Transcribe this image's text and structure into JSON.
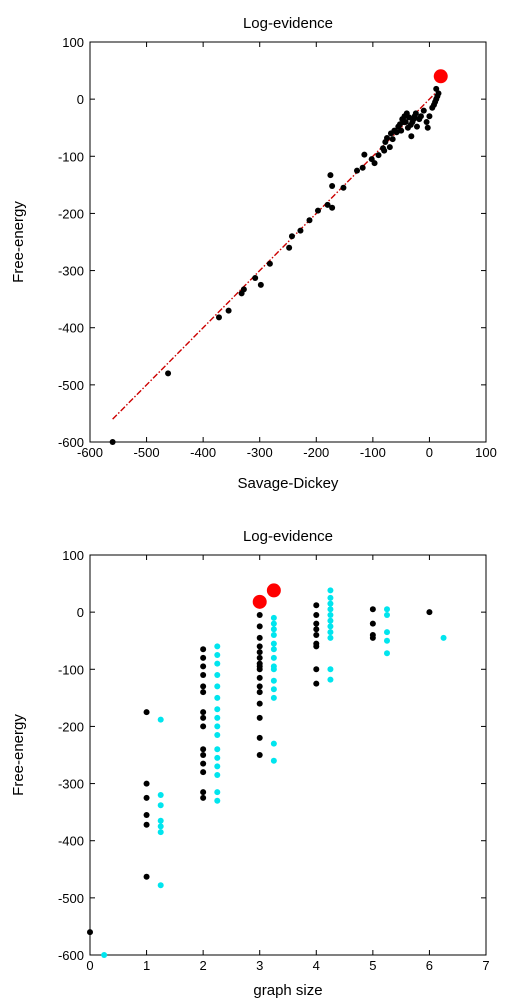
{
  "chart_data": [
    {
      "type": "scatter",
      "title": "Log-evidence",
      "xlabel": "Savage-Dickey",
      "ylabel": "Free-energy",
      "xlim": [
        -600,
        100
      ],
      "ylim": [
        -600,
        100
      ],
      "xticks": [
        -600,
        -500,
        -400,
        -300,
        -200,
        -100,
        0,
        100
      ],
      "yticks": [
        100,
        0,
        -100,
        -200,
        -300,
        -400,
        -500,
        -600
      ],
      "grid": false,
      "colors": {
        "points": "#000000",
        "highlight": "#ff0000",
        "fit_line": "#cc0000"
      },
      "fit_line": {
        "from": [
          -560,
          -560
        ],
        "to": [
          15,
          15
        ]
      },
      "series": [
        {
          "values": [
            [
              -560,
              -600
            ],
            [
              -462,
              -480
            ],
            [
              -372,
              -382
            ],
            [
              -355,
              -370
            ],
            [
              -332,
              -340
            ],
            [
              -328,
              -333
            ],
            [
              -308,
              -313
            ],
            [
              -298,
              -325
            ],
            [
              -282,
              -288
            ],
            [
              -248,
              -260
            ],
            [
              -243,
              -240
            ],
            [
              -228,
              -230
            ],
            [
              -212,
              -212
            ],
            [
              -197,
              -195
            ],
            [
              -180,
              -185
            ],
            [
              -172,
              -190
            ],
            [
              -175,
              -133
            ],
            [
              -172,
              -152
            ],
            [
              -152,
              -155
            ],
            [
              -128,
              -125
            ],
            [
              -118,
              -120
            ],
            [
              -115,
              -97
            ],
            [
              -102,
              -105
            ],
            [
              -97,
              -112
            ],
            [
              -90,
              -98
            ],
            [
              -82,
              -86
            ],
            [
              -80,
              -90
            ],
            [
              -78,
              -75
            ],
            [
              -75,
              -68
            ],
            [
              -70,
              -84
            ],
            [
              -68,
              -60
            ],
            [
              -65,
              -70
            ],
            [
              -62,
              -55
            ],
            [
              -58,
              -58
            ],
            [
              -55,
              -48
            ],
            [
              -52,
              -44
            ],
            [
              -50,
              -55
            ],
            [
              -48,
              -35
            ],
            [
              -46,
              -40
            ],
            [
              -44,
              -30
            ],
            [
              -42,
              -40
            ],
            [
              -40,
              -25
            ],
            [
              -38,
              -50
            ],
            [
              -36,
              -32
            ],
            [
              -33,
              -45
            ],
            [
              -32,
              -65
            ],
            [
              -30,
              -40
            ],
            [
              -28,
              -35
            ],
            [
              -26,
              -30
            ],
            [
              -24,
              -25
            ],
            [
              -22,
              -48
            ],
            [
              -18,
              -35
            ],
            [
              -15,
              -30
            ],
            [
              -10,
              -20
            ],
            [
              -5,
              -40
            ],
            [
              -3,
              -50
            ],
            [
              0,
              -30
            ],
            [
              5,
              -15
            ],
            [
              8,
              -10
            ],
            [
              10,
              -5
            ],
            [
              12,
              0
            ],
            [
              14,
              5
            ],
            [
              16,
              10
            ],
            [
              12,
              18
            ]
          ]
        }
      ],
      "highlight": [
        [
          20,
          40
        ]
      ]
    },
    {
      "type": "scatter",
      "title": "Log-evidence",
      "xlabel": "graph size",
      "ylabel": "Free-energy",
      "xlim": [
        0,
        7
      ],
      "ylim": [
        -600,
        100
      ],
      "xticks": [
        0,
        1,
        2,
        3,
        4,
        5,
        6,
        7
      ],
      "yticks": [
        100,
        0,
        -100,
        -200,
        -300,
        -400,
        -500,
        -600
      ],
      "grid": false,
      "colors": {
        "black": "#000000",
        "cyan": "#00e5ee",
        "highlight": "#ff0000"
      },
      "series": [
        {
          "color": "#000000",
          "values": [
            [
              0,
              -560
            ],
            [
              1,
              -175
            ],
            [
              1,
              -300
            ],
            [
              1,
              -325
            ],
            [
              1,
              -355
            ],
            [
              1,
              -372
            ],
            [
              1,
              -463
            ],
            [
              2,
              -65
            ],
            [
              2,
              -80
            ],
            [
              2,
              -95
            ],
            [
              2,
              -110
            ],
            [
              2,
              -130
            ],
            [
              2,
              -140
            ],
            [
              2,
              -175
            ],
            [
              2,
              -185
            ],
            [
              2,
              -200
            ],
            [
              2,
              -240
            ],
            [
              2,
              -250
            ],
            [
              2,
              -265
            ],
            [
              2,
              -280
            ],
            [
              2,
              -315
            ],
            [
              2,
              -325
            ],
            [
              3,
              -5
            ],
            [
              3,
              -25
            ],
            [
              3,
              -45
            ],
            [
              3,
              -60
            ],
            [
              3,
              -70
            ],
            [
              3,
              -80
            ],
            [
              3,
              -90
            ],
            [
              3,
              -95
            ],
            [
              3,
              -100
            ],
            [
              3,
              -115
            ],
            [
              3,
              -130
            ],
            [
              3,
              -140
            ],
            [
              3,
              -160
            ],
            [
              3,
              -185
            ],
            [
              3,
              -220
            ],
            [
              3,
              -250
            ],
            [
              4,
              12
            ],
            [
              4,
              -5
            ],
            [
              4,
              -20
            ],
            [
              4,
              -30
            ],
            [
              4,
              -40
            ],
            [
              4,
              -55
            ],
            [
              4,
              -60
            ],
            [
              4,
              -100
            ],
            [
              4,
              -125
            ],
            [
              5,
              5
            ],
            [
              5,
              -20
            ],
            [
              5,
              -40
            ],
            [
              5,
              -45
            ],
            [
              6,
              0
            ]
          ]
        },
        {
          "color": "#00e5ee",
          "values": [
            [
              0.25,
              -600
            ],
            [
              1.25,
              -188
            ],
            [
              1.25,
              -320
            ],
            [
              1.25,
              -338
            ],
            [
              1.25,
              -365
            ],
            [
              1.25,
              -375
            ],
            [
              1.25,
              -385
            ],
            [
              1.25,
              -478
            ],
            [
              2.25,
              -60
            ],
            [
              2.25,
              -75
            ],
            [
              2.25,
              -90
            ],
            [
              2.25,
              -110
            ],
            [
              2.25,
              -130
            ],
            [
              2.25,
              -150
            ],
            [
              2.25,
              -170
            ],
            [
              2.25,
              -185
            ],
            [
              2.25,
              -200
            ],
            [
              2.25,
              -215
            ],
            [
              2.25,
              -240
            ],
            [
              2.25,
              -255
            ],
            [
              2.25,
              -270
            ],
            [
              2.25,
              -285
            ],
            [
              2.25,
              -315
            ],
            [
              2.25,
              -330
            ],
            [
              3.25,
              -10
            ],
            [
              3.25,
              -20
            ],
            [
              3.25,
              -30
            ],
            [
              3.25,
              -40
            ],
            [
              3.25,
              -55
            ],
            [
              3.25,
              -65
            ],
            [
              3.25,
              -80
            ],
            [
              3.25,
              -95
            ],
            [
              3.25,
              -100
            ],
            [
              3.25,
              -120
            ],
            [
              3.25,
              -135
            ],
            [
              3.25,
              -150
            ],
            [
              3.25,
              -230
            ],
            [
              3.25,
              -260
            ],
            [
              4.25,
              38
            ],
            [
              4.25,
              25
            ],
            [
              4.25,
              15
            ],
            [
              4.25,
              5
            ],
            [
              4.25,
              -5
            ],
            [
              4.25,
              -15
            ],
            [
              4.25,
              -25
            ],
            [
              4.25,
              -35
            ],
            [
              4.25,
              -45
            ],
            [
              4.25,
              -100
            ],
            [
              4.25,
              -118
            ],
            [
              5.25,
              5
            ],
            [
              5.25,
              -5
            ],
            [
              5.25,
              -35
            ],
            [
              5.25,
              -50
            ],
            [
              5.25,
              -72
            ],
            [
              6.25,
              -45
            ]
          ]
        }
      ],
      "highlight": [
        [
          3,
          18
        ],
        [
          3.25,
          38
        ]
      ]
    }
  ]
}
